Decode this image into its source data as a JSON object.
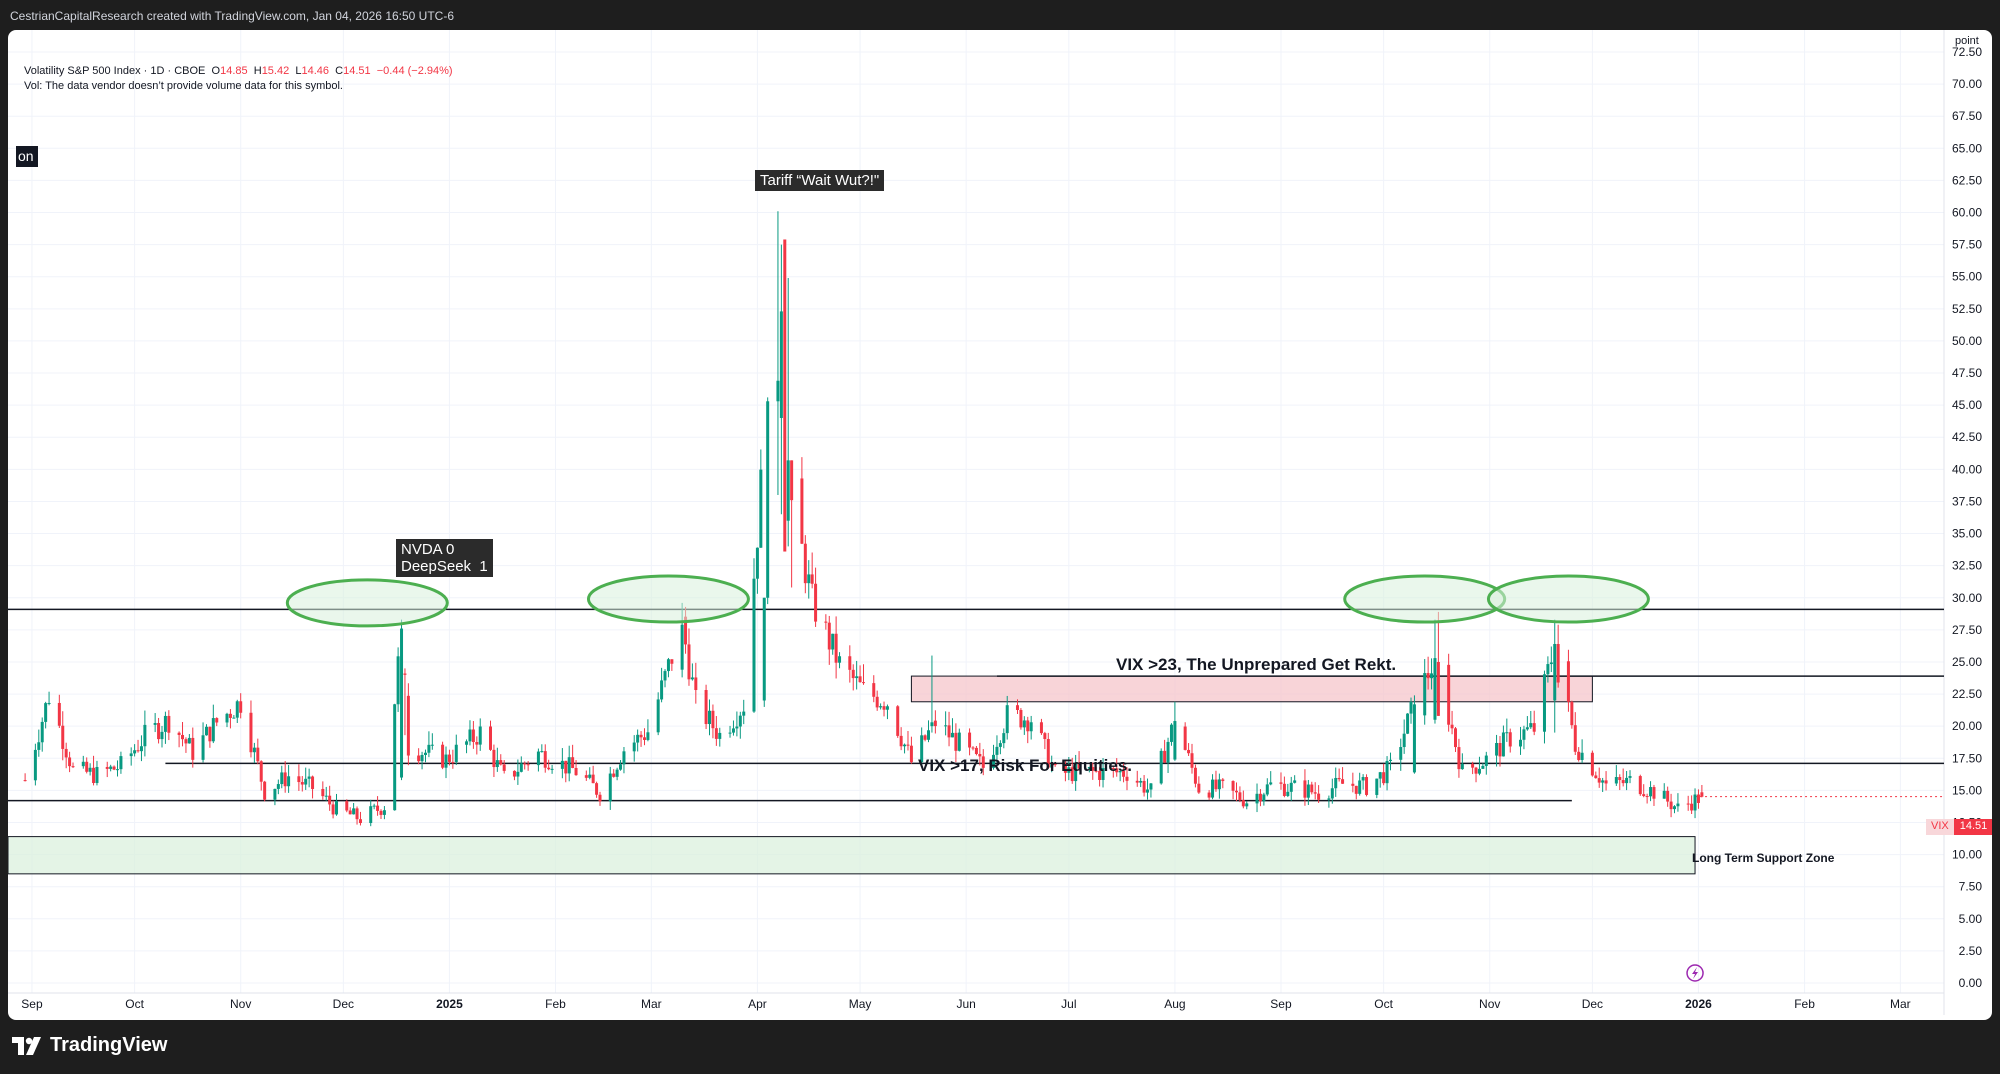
{
  "header": {
    "credit": "CestrianCapitalResearch created with TradingView.com, Jan 04, 2026 16:50 UTC-6"
  },
  "legend": {
    "symbol": "Volatility S&P 500 Index · 1D · CBOE",
    "o_label": "O",
    "o": "14.85",
    "h_label": "H",
    "h": "15.42",
    "l_label": "L",
    "l": "14.46",
    "c_label": "C",
    "c": "14.51",
    "change": "−0.44 (−2.94%)",
    "vol_note": "Vol: The data vendor doesn’t provide volume data for this symbol."
  },
  "price_axis": {
    "unit": "point"
  },
  "side_tag": "on",
  "annotations": {
    "tariff": "Tariff “Wait Wut?!\"",
    "nvda": "NVDA 0\nDeepSeek  1",
    "vix23": "VIX >23, The Unprepared Get Rekt.",
    "vix17": "VIX >17, Risk For Equities.",
    "support": "Long Term Support Zone"
  },
  "current_price": {
    "symbol": "VIX",
    "value": "14.51"
  },
  "footer": {
    "brand": "TradingView"
  },
  "colors": {
    "up": "#089981",
    "down": "#f23645",
    "ellipse": "#4caf50",
    "resistance_zone": "#f5c2c7",
    "support_zone": "#d9f0dc"
  },
  "chart_data": {
    "type": "candlestick",
    "title": "Volatility S&P 500 Index · 1D · CBOE",
    "ylabel": "point",
    "ylim": [
      0,
      72.5
    ],
    "y_ticks": [
      "72.50",
      "70.00",
      "67.50",
      "65.00",
      "62.50",
      "60.00",
      "57.50",
      "55.00",
      "52.50",
      "50.00",
      "47.50",
      "45.00",
      "42.50",
      "40.00",
      "37.50",
      "35.00",
      "32.50",
      "30.00",
      "27.50",
      "25.00",
      "22.50",
      "20.00",
      "17.50",
      "15.00",
      "12.50",
      "10.00",
      "7.50",
      "5.00",
      "2.50",
      "0.00"
    ],
    "x_ticks": [
      {
        "label": "Sep",
        "date": "2024-09-01"
      },
      {
        "label": "Oct",
        "date": "2024-10-01"
      },
      {
        "label": "Nov",
        "date": "2024-11-01"
      },
      {
        "label": "Dec",
        "date": "2024-12-01"
      },
      {
        "label": "2025",
        "date": "2025-01-01",
        "bold": true
      },
      {
        "label": "Feb",
        "date": "2025-02-01"
      },
      {
        "label": "Mar",
        "date": "2025-03-01"
      },
      {
        "label": "Apr",
        "date": "2025-04-01"
      },
      {
        "label": "May",
        "date": "2025-05-01"
      },
      {
        "label": "Jun",
        "date": "2025-06-01"
      },
      {
        "label": "Jul",
        "date": "2025-07-01"
      },
      {
        "label": "Aug",
        "date": "2025-08-01"
      },
      {
        "label": "Sep",
        "date": "2025-09-01"
      },
      {
        "label": "Oct",
        "date": "2025-10-01"
      },
      {
        "label": "Nov",
        "date": "2025-11-01"
      },
      {
        "label": "Dec",
        "date": "2025-12-01"
      },
      {
        "label": "2026",
        "date": "2026-01-01",
        "bold": true
      },
      {
        "label": "Feb",
        "date": "2026-02-01"
      },
      {
        "label": "Mar",
        "date": "2026-03-01"
      }
    ],
    "series_close": [
      {
        "date": "2024-08-30",
        "close": 15.8
      },
      {
        "date": "2024-09-06",
        "close": 22.4
      },
      {
        "date": "2024-09-13",
        "close": 16.6
      },
      {
        "date": "2024-09-20",
        "close": 16.2
      },
      {
        "date": "2024-09-27",
        "close": 16.9
      },
      {
        "date": "2024-10-04",
        "close": 19.2
      },
      {
        "date": "2024-10-11",
        "close": 20.5
      },
      {
        "date": "2024-10-18",
        "close": 18.0
      },
      {
        "date": "2024-10-25",
        "close": 20.3
      },
      {
        "date": "2024-11-01",
        "close": 21.9
      },
      {
        "date": "2024-11-08",
        "close": 14.9
      },
      {
        "date": "2024-11-15",
        "close": 16.1
      },
      {
        "date": "2024-11-22",
        "close": 15.2
      },
      {
        "date": "2024-11-29",
        "close": 13.5
      },
      {
        "date": "2024-12-06",
        "close": 12.8
      },
      {
        "date": "2024-12-13",
        "close": 13.8
      },
      {
        "date": "2024-12-18",
        "close": 27.6
      },
      {
        "date": "2024-12-20",
        "close": 18.4
      },
      {
        "date": "2024-12-31",
        "close": 17.4
      },
      {
        "date": "2025-01-10",
        "close": 19.5
      },
      {
        "date": "2025-01-17",
        "close": 15.9
      },
      {
        "date": "2025-01-27",
        "close": 17.9
      },
      {
        "date": "2025-02-07",
        "close": 16.5
      },
      {
        "date": "2025-02-14",
        "close": 14.8
      },
      {
        "date": "2025-02-21",
        "close": 18.2
      },
      {
        "date": "2025-02-28",
        "close": 19.6
      },
      {
        "date": "2025-03-10",
        "close": 27.9
      },
      {
        "date": "2025-03-14",
        "close": 21.8
      },
      {
        "date": "2025-03-21",
        "close": 19.3
      },
      {
        "date": "2025-03-28",
        "close": 21.7
      },
      {
        "date": "2025-04-04",
        "close": 45.3
      },
      {
        "date": "2025-04-08",
        "close": 52.3
      },
      {
        "date": "2025-04-11",
        "close": 37.6
      },
      {
        "date": "2025-04-17",
        "close": 29.7
      },
      {
        "date": "2025-04-25",
        "close": 24.8
      },
      {
        "date": "2025-05-02",
        "close": 22.7
      },
      {
        "date": "2025-05-09",
        "close": 21.9
      },
      {
        "date": "2025-05-16",
        "close": 17.2
      },
      {
        "date": "2025-05-23",
        "close": 20.3
      },
      {
        "date": "2025-05-30",
        "close": 18.6
      },
      {
        "date": "2025-06-06",
        "close": 16.8
      },
      {
        "date": "2025-06-13",
        "close": 20.8
      },
      {
        "date": "2025-06-20",
        "close": 20.6
      },
      {
        "date": "2025-06-27",
        "close": 16.3
      },
      {
        "date": "2025-07-03",
        "close": 16.4
      },
      {
        "date": "2025-07-11",
        "close": 16.4
      },
      {
        "date": "2025-07-18",
        "close": 16.4
      },
      {
        "date": "2025-07-25",
        "close": 14.9
      },
      {
        "date": "2025-08-01",
        "close": 20.4
      },
      {
        "date": "2025-08-08",
        "close": 15.2
      },
      {
        "date": "2025-08-15",
        "close": 15.1
      },
      {
        "date": "2025-08-22",
        "close": 14.2
      },
      {
        "date": "2025-08-29",
        "close": 15.4
      },
      {
        "date": "2025-09-05",
        "close": 15.2
      },
      {
        "date": "2025-09-12",
        "close": 14.8
      },
      {
        "date": "2025-09-19",
        "close": 15.5
      },
      {
        "date": "2025-09-26",
        "close": 15.3
      },
      {
        "date": "2025-10-03",
        "close": 16.7
      },
      {
        "date": "2025-10-10",
        "close": 21.7
      },
      {
        "date": "2025-10-16",
        "close": 25.3
      },
      {
        "date": "2025-10-24",
        "close": 16.4
      },
      {
        "date": "2025-10-31",
        "close": 17.4
      },
      {
        "date": "2025-11-07",
        "close": 19.1
      },
      {
        "date": "2025-11-14",
        "close": 19.8
      },
      {
        "date": "2025-11-20",
        "close": 26.4
      },
      {
        "date": "2025-11-26",
        "close": 18.6
      },
      {
        "date": "2025-12-05",
        "close": 15.4
      },
      {
        "date": "2025-12-12",
        "close": 15.7
      },
      {
        "date": "2025-12-19",
        "close": 14.9
      },
      {
        "date": "2025-12-26",
        "close": 13.6
      },
      {
        "date": "2026-01-02",
        "close": 14.51
      }
    ],
    "levels": [
      {
        "name": "resistance",
        "value": 29.1
      },
      {
        "name": "VIX >17, Risk For Equities.",
        "value": 17.1
      },
      {
        "name": "lower support line",
        "value": 14.2
      }
    ],
    "zones": [
      {
        "name": "VIX >23, The Unprepared Get Rekt.",
        "from": 21.9,
        "to": 23.9
      },
      {
        "name": "Long Term Support Zone",
        "from": 8.5,
        "to": 11.4
      }
    ],
    "last": {
      "open": 14.85,
      "high": 15.42,
      "low": 14.46,
      "close": 14.51,
      "change": -0.44,
      "change_pct": -2.94
    }
  }
}
